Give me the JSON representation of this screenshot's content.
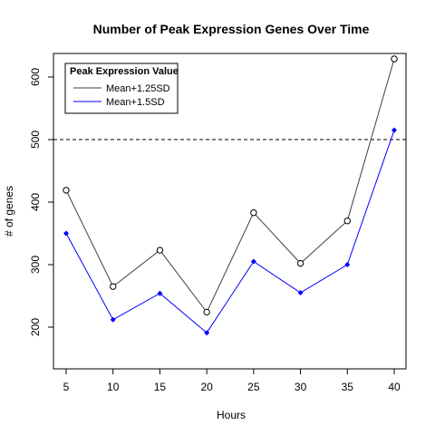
{
  "chart_data": {
    "type": "line",
    "title": "Number of Peak Expression Genes Over Time",
    "xlabel": "Hours",
    "ylabel": "# of genes",
    "x": [
      5,
      10,
      15,
      20,
      25,
      30,
      35,
      40
    ],
    "xticks": [
      "5",
      "10",
      "15",
      "20",
      "25",
      "30",
      "35",
      "40"
    ],
    "yticks": [
      "200",
      "300",
      "400",
      "500",
      "600"
    ],
    "xlim": [
      5,
      40
    ],
    "ylim": [
      190,
      630
    ],
    "series": [
      {
        "name": "Mean+1.25SD",
        "values": [
          419,
          265,
          323,
          224,
          383,
          302,
          370,
          629
        ],
        "color": "#404040",
        "marker": "open-circle"
      },
      {
        "name": "Mean+1.5SD",
        "values": [
          350,
          212,
          254,
          191,
          305,
          255,
          300,
          515
        ],
        "color": "#0000ff",
        "marker": "filled-diamond"
      }
    ],
    "reference_line": {
      "y": 500,
      "style": "dashed",
      "color": "#000000"
    },
    "legend": {
      "title": "Peak Expression Value",
      "position": "top-left"
    },
    "grid": false
  }
}
